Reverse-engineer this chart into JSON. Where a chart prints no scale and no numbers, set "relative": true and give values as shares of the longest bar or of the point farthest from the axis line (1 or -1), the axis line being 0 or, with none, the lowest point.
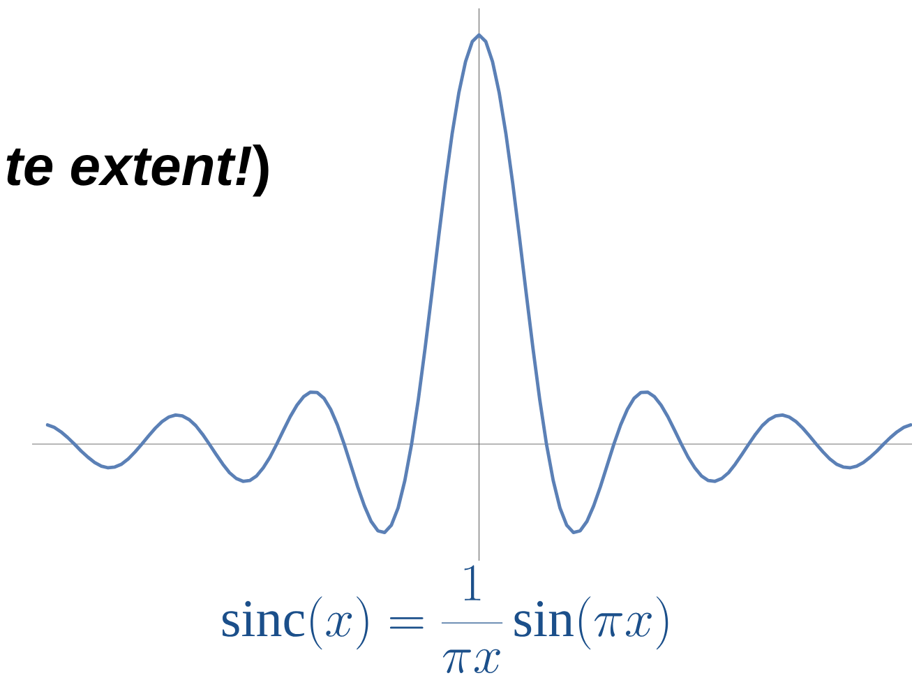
{
  "chart_data": {
    "type": "line",
    "title": "*te extent!*)",
    "annotations": [
      "\\mathrm{sinc}(x) = \\frac{1}{\\pi x}\\sin(\\pi x)"
    ],
    "relative": true,
    "marker": "none",
    "line_style": "solid",
    "color": "#5b80b6",
    "categories": [
      null,
      null,
      null,
      null,
      null,
      null,
      null,
      null,
      null,
      null,
      null,
      null,
      null,
      null,
      null,
      null,
      null,
      null,
      null,
      null,
      null,
      null,
      null,
      null,
      null,
      null,
      null,
      null,
      null,
      null,
      null,
      null,
      null,
      null,
      null,
      null,
      null,
      null,
      null,
      null,
      null,
      null,
      null,
      null,
      null,
      null,
      null,
      null,
      null,
      null,
      null,
      null,
      null,
      null,
      null,
      null,
      null,
      null,
      null,
      null,
      null,
      null,
      null,
      null,
      null,
      null,
      null,
      null,
      null,
      null,
      null,
      null,
      null,
      null,
      null,
      null,
      null,
      null,
      null,
      null,
      null,
      null,
      null,
      null,
      null,
      null,
      null,
      null,
      null,
      null,
      null,
      null,
      null,
      null,
      null,
      null,
      null,
      null,
      null,
      null,
      null,
      null,
      null,
      null,
      null,
      null,
      null,
      null,
      null,
      null,
      null,
      null,
      null,
      null,
      null,
      null,
      null,
      null,
      null,
      null,
      null,
      null,
      null,
      null,
      null,
      null,
      null,
      null,
      null
    ],
    "values": [
      0.047,
      0.041,
      0.03,
      0.016,
      0,
      -0.017,
      -0.032,
      -0.045,
      -0.054,
      -0.058,
      -0.056,
      -0.049,
      -0.036,
      -0.019,
      0,
      0.02,
      0.039,
      0.055,
      0.066,
      0.071,
      0.069,
      0.06,
      0.045,
      0.024,
      0,
      -0.025,
      -0.049,
      -0.07,
      -0.084,
      -0.091,
      -0.089,
      -0.078,
      -0.058,
      -0.032,
      0,
      0.034,
      0.067,
      0.095,
      0.116,
      0.127,
      0.126,
      0.112,
      0.085,
      0.047,
      0,
      -0.052,
      -0.104,
      -0.151,
      -0.189,
      -0.212,
      -0.216,
      -0.198,
      -0.156,
      -0.089,
      0,
      0.109,
      0.234,
      0.368,
      0.505,
      0.637,
      0.757,
      0.858,
      0.935,
      0.984,
      1,
      0.984,
      0.935,
      0.858,
      0.757,
      0.637,
      0.505,
      0.368,
      0.234,
      0.109,
      0,
      -0.089,
      -0.156,
      -0.198,
      -0.216,
      -0.212,
      -0.189,
      -0.151,
      -0.104,
      -0.052,
      0,
      0.047,
      0.085,
      0.112,
      0.126,
      0.127,
      0.116,
      0.095,
      0.067,
      0.034,
      0,
      -0.032,
      -0.058,
      -0.078,
      -0.089,
      -0.091,
      -0.084,
      -0.07,
      -0.049,
      -0.025,
      0,
      0.024,
      0.045,
      0.06,
      0.069,
      0.071,
      0.066,
      0.055,
      0.039,
      0.02,
      0,
      -0.019,
      -0.036,
      -0.049,
      -0.056,
      -0.058,
      -0.054,
      -0.045,
      -0.032,
      -0.017,
      0,
      0.016,
      0.03,
      0.041,
      0.047
    ]
  }
}
